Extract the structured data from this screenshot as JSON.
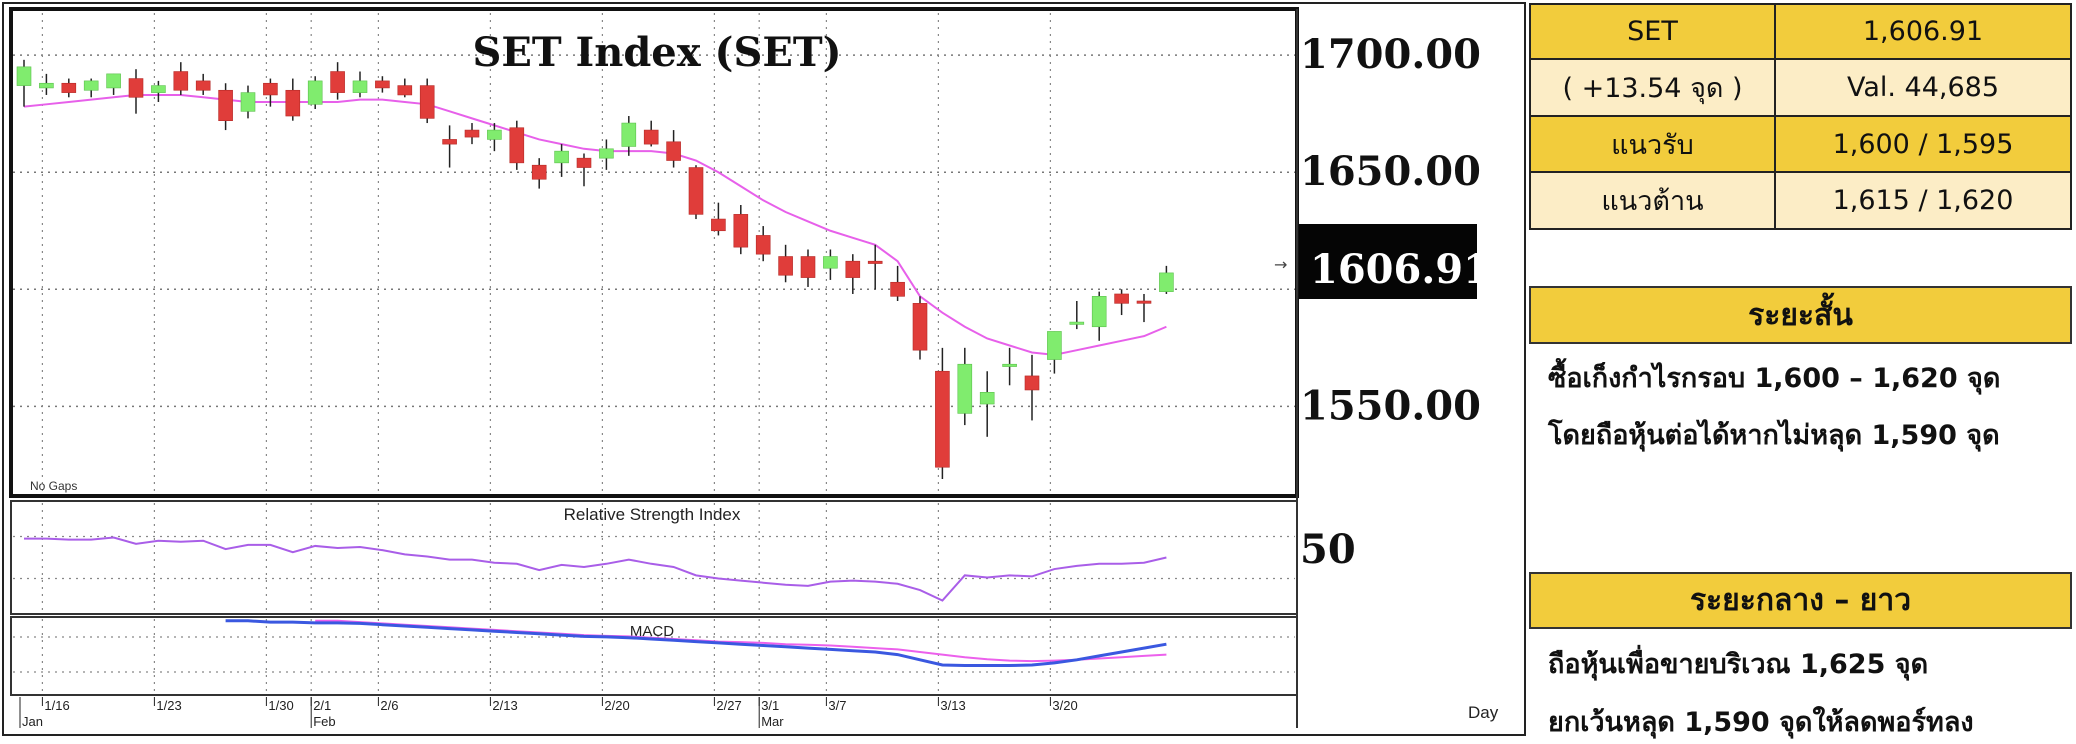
{
  "chart_data": {
    "type": "candlestick",
    "title": "SET Index (SET)",
    "price_axis": {
      "ylim": [
        1513,
        1718
      ],
      "tick_labels": [
        "1700.00",
        "1650.00",
        "1550.00"
      ],
      "ticks": [
        1700,
        1650,
        1550
      ]
    },
    "last_price_label": "1606.91",
    "no_gaps_label": "No Gaps",
    "ohlc": [
      [
        1687,
        1698,
        1678,
        1695
      ],
      [
        1686,
        1692,
        1683,
        1688
      ],
      [
        1688,
        1690,
        1682,
        1684
      ],
      [
        1685,
        1690,
        1682,
        1689
      ],
      [
        1686,
        1692,
        1683,
        1692
      ],
      [
        1690,
        1694,
        1675,
        1682
      ],
      [
        1684,
        1689,
        1680,
        1687
      ],
      [
        1693,
        1697,
        1683,
        1685
      ],
      [
        1689,
        1692,
        1683,
        1685
      ],
      [
        1685,
        1688,
        1668,
        1672
      ],
      [
        1676,
        1687,
        1673,
        1684
      ],
      [
        1688,
        1690,
        1678,
        1683
      ],
      [
        1685,
        1690,
        1672,
        1674
      ],
      [
        1679,
        1691,
        1677,
        1689
      ],
      [
        1693,
        1697,
        1681,
        1684
      ],
      [
        1684,
        1693,
        1682,
        1689
      ],
      [
        1689,
        1691,
        1684,
        1686
      ],
      [
        1687,
        1690,
        1682,
        1683
      ],
      [
        1687,
        1690,
        1671,
        1673
      ],
      [
        1664,
        1670,
        1652,
        1662
      ],
      [
        1668,
        1671,
        1662,
        1665
      ],
      [
        1664,
        1671,
        1659,
        1668
      ],
      [
        1669,
        1672,
        1651,
        1654
      ],
      [
        1653,
        1656,
        1643,
        1647
      ],
      [
        1654,
        1662,
        1648,
        1659
      ],
      [
        1656,
        1658,
        1644,
        1652
      ],
      [
        1656,
        1664,
        1651,
        1660
      ],
      [
        1661,
        1674,
        1657,
        1671
      ],
      [
        1668,
        1672,
        1661,
        1662
      ],
      [
        1663,
        1668,
        1652,
        1655
      ],
      [
        1652,
        1653,
        1630,
        1632
      ],
      [
        1630,
        1637,
        1623,
        1625
      ],
      [
        1632,
        1636,
        1615,
        1618
      ],
      [
        1623,
        1627,
        1612,
        1615
      ],
      [
        1614,
        1619,
        1603,
        1606
      ],
      [
        1614,
        1617,
        1601,
        1605
      ],
      [
        1609,
        1617,
        1604,
        1614
      ],
      [
        1612,
        1615,
        1598,
        1605
      ],
      [
        1612,
        1619,
        1600,
        1611
      ],
      [
        1603,
        1610,
        1595,
        1597
      ],
      [
        1594,
        1597,
        1570,
        1574
      ],
      [
        1565,
        1575,
        1519,
        1524
      ],
      [
        1547,
        1575,
        1542,
        1568
      ],
      [
        1551,
        1565,
        1537,
        1556
      ],
      [
        1567,
        1575,
        1559,
        1568
      ],
      [
        1563,
        1572,
        1544,
        1557
      ],
      [
        1570,
        1582,
        1564,
        1582
      ],
      [
        1585,
        1595,
        1583,
        1586
      ],
      [
        1584,
        1599,
        1578,
        1597
      ],
      [
        1598,
        1600,
        1589,
        1594
      ],
      [
        1595,
        1598,
        1586,
        1594
      ],
      [
        1599,
        1610,
        1598,
        1607
      ]
    ],
    "ma": [
      1678,
      1679,
      1680,
      1681,
      1682,
      1683,
      1683,
      1683,
      1682,
      1681,
      1680,
      1680,
      1680,
      1680,
      1680,
      1681,
      1681,
      1680,
      1679,
      1676,
      1673,
      1670,
      1667,
      1664,
      1662,
      1660,
      1659,
      1659,
      1659,
      1658,
      1655,
      1650,
      1644,
      1638,
      1633,
      1629,
      1625,
      1622,
      1619,
      1612,
      1597,
      1590,
      1584,
      1579,
      1576,
      1573,
      1572,
      1574,
      1576,
      1578,
      1580,
      1584
    ],
    "x_labels": [
      {
        "i": 1,
        "text": "1/16"
      },
      {
        "i": 6,
        "text": "1/23"
      },
      {
        "i": 11,
        "text": "1/30"
      },
      {
        "i": 13,
        "text": "2/1"
      },
      {
        "i": 16,
        "text": "2/6"
      },
      {
        "i": 21,
        "text": "2/13"
      },
      {
        "i": 26,
        "text": "2/20"
      },
      {
        "i": 31,
        "text": "2/27"
      },
      {
        "i": 33,
        "text": "3/1"
      },
      {
        "i": 36,
        "text": "3/7"
      },
      {
        "i": 41,
        "text": "3/13"
      },
      {
        "i": 46,
        "text": "3/20"
      }
    ],
    "month_labels": [
      {
        "i": 0,
        "text": "Jan"
      },
      {
        "i": 13,
        "text": "Feb"
      },
      {
        "i": 33,
        "text": "Mar"
      }
    ],
    "period_label": "Day",
    "rsi": {
      "title": "Relative Strength Index",
      "tick_label": "50",
      "values": [
        68,
        68,
        67,
        67,
        69,
        63,
        66,
        65,
        66,
        58,
        62,
        62,
        55,
        61,
        59,
        60,
        57,
        53,
        51,
        48,
        48,
        45,
        44,
        38,
        43,
        41,
        44,
        48,
        44,
        41,
        33,
        30,
        28,
        26,
        24,
        23,
        27,
        28,
        27,
        25,
        19,
        9,
        33,
        31,
        33,
        32,
        39,
        42,
        44,
        44,
        45,
        50
      ]
    },
    "macd": {
      "title": "MACD",
      "macd_line": [
        null,
        null,
        null,
        null,
        null,
        null,
        null,
        null,
        null,
        0.2,
        0.2,
        0.15,
        0.15,
        0.12,
        0.12,
        0.1,
        0.05,
        0,
        -0.05,
        -0.1,
        -0.15,
        -0.2,
        -0.25,
        -0.3,
        -0.35,
        -0.4,
        -0.42,
        -0.45,
        -0.5,
        -0.55,
        -0.6,
        -0.65,
        -0.7,
        -0.75,
        -0.8,
        -0.85,
        -0.9,
        -0.95,
        -1.0,
        -1.1,
        -1.3,
        -1.5,
        -1.52,
        -1.52,
        -1.52,
        -1.5,
        -1.42,
        -1.3,
        -1.15,
        -1.0,
        -0.85,
        -0.7
      ],
      "signal_line": [
        null,
        null,
        null,
        null,
        null,
        null,
        null,
        null,
        null,
        null,
        null,
        null,
        null,
        0.2,
        0.2,
        0.15,
        0.1,
        0.05,
        0,
        -0.05,
        -0.1,
        -0.15,
        -0.2,
        -0.25,
        -0.3,
        -0.35,
        -0.38,
        -0.4,
        -0.45,
        -0.5,
        -0.55,
        -0.6,
        -0.62,
        -0.65,
        -0.7,
        -0.72,
        -0.75,
        -0.8,
        -0.85,
        -0.9,
        -1.0,
        -1.1,
        -1.2,
        -1.28,
        -1.33,
        -1.35,
        -1.33,
        -1.3,
        -1.25,
        -1.2,
        -1.15,
        -1.1
      ]
    },
    "colors": {
      "up": "#80ec6e",
      "down": "#e03d3a",
      "ma": "#e760ea",
      "rsi": "#a95ee8",
      "macd": "#3a58e0",
      "signal": "#ec60ec"
    }
  },
  "table": {
    "rows": [
      {
        "left": "SET",
        "right": "1,606.91"
      },
      {
        "left": "( +13.54 จุด )",
        "right": "Val. 44,685"
      },
      {
        "left": "แนวรับ",
        "right": "1,600 / 1,595"
      },
      {
        "left": "แนวต้าน",
        "right": "1,615 / 1,620"
      }
    ]
  },
  "short_term": {
    "title": "ระยะสั้น",
    "lines": [
      "ซื้อเก็งกำไรกรอบ 1,600 – 1,620 จุด",
      "โดยถือหุ้นต่อได้หากไม่หลุด 1,590 จุด"
    ]
  },
  "long_term": {
    "title": "ระยะกลาง – ยาว",
    "lines": [
      "ถือหุ้นเพื่อขายบริเวณ 1,625 จุด",
      "ยกเว้นหลุด 1,590 จุดให้ลดพอร์ทลง"
    ]
  }
}
